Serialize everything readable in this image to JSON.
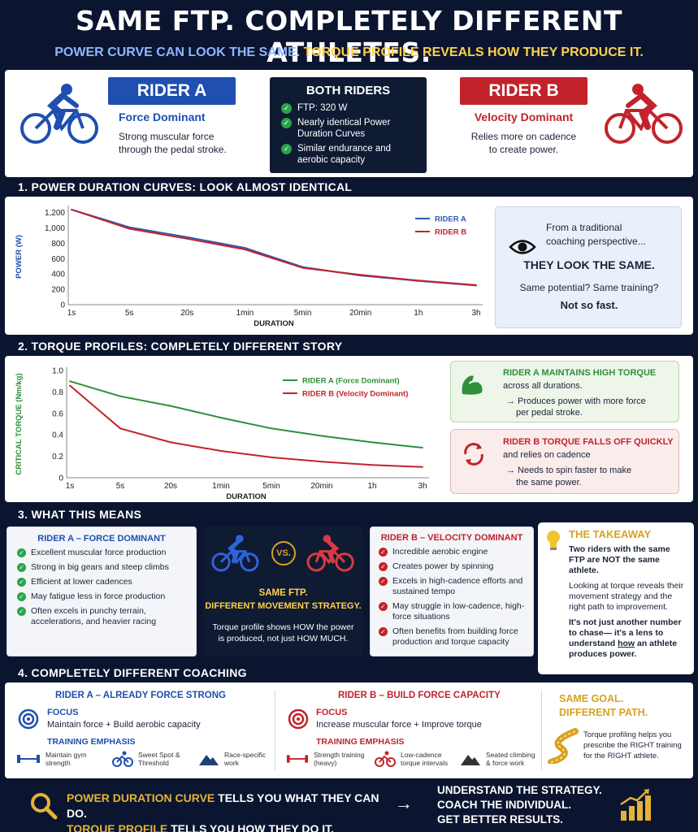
{
  "header": {
    "title": "SAME FTP. COMPLETELY DIFFERENT ATHLETES.",
    "subtitle_blue": "POWER CURVE CAN LOOK THE SAME.",
    "subtitle_yellow": "TORQUE PROFILE REVEALS HOW THEY PRODUCE IT."
  },
  "intro": {
    "rider_a": {
      "label": "RIDER A",
      "type": "Force Dominant",
      "desc1": "Strong muscular force",
      "desc2": "through the pedal stroke."
    },
    "both": {
      "title": "BOTH RIDERS",
      "items": [
        "FTP: 320 W",
        "Nearly identical Power Duration Curves",
        "Similar endurance and aerobic capacity"
      ]
    },
    "rider_b": {
      "label": "RIDER B",
      "type": "Velocity Dominant",
      "desc1": "Relies more on cadence",
      "desc2": "to create power."
    }
  },
  "section1": {
    "title": "1. POWER DURATION CURVES: LOOK ALMOST IDENTICAL",
    "callout": {
      "line1": "From a traditional",
      "line2": "coaching perspective...",
      "headline": "THEY LOOK THE SAME.",
      "question": "Same potential? Same training?",
      "answer": "Not so fast."
    }
  },
  "section2": {
    "title": "2. TORQUE PROFILES: COMPLETELY DIFFERENT STORY",
    "card_a": {
      "title": "RIDER A MAINTAINS HIGH TORQUE",
      "line1": "across all durations.",
      "line2": "→ Produces power with more force",
      "line3": "per pedal stroke."
    },
    "card_b": {
      "title": "RIDER B TORQUE FALLS OFF QUICKLY",
      "line1": "and relies on cadence",
      "line2": "→ Needs to spin faster to make",
      "line3": "the same power."
    }
  },
  "section3": {
    "title": "3. WHAT THIS MEANS",
    "rider_a": {
      "title": "RIDER A – FORCE DOMINANT",
      "items": [
        "Excellent muscular force production",
        "Strong in big gears and steep climbs",
        "Efficient at lower cadences",
        "May fatigue less in force production",
        "Often excels in punchy terrain, accelerations, and heavier racing"
      ]
    },
    "middle": {
      "vs": "VS.",
      "line1": "SAME FTP.",
      "line2": "DIFFERENT MOVEMENT STRATEGY.",
      "desc": "Torque profile shows HOW the power is produced, not just HOW MUCH."
    },
    "rider_b": {
      "title": "RIDER B – VELOCITY DOMINANT",
      "items": [
        "Incredible aerobic engine",
        "Creates power by spinning",
        "Excels in high-cadence efforts and sustained tempo",
        "May struggle in low-cadence, high-force situations",
        "Often benefits from building force production and torque capacity"
      ]
    },
    "takeaway": {
      "title": "THE TAKEAWAY",
      "p1": "Two riders with the same FTP are NOT the same athlete.",
      "p2": "Looking at torque reveals their movement strategy and the right path to improvement.",
      "p3a": "It's not just another number to chase—",
      "p3b": "it's a lens to understand",
      "p3c": "how",
      "p3d": "an athlete produces power."
    }
  },
  "section4": {
    "title": "4. COMPLETELY DIFFERENT COACHING",
    "rider_a": {
      "title": "RIDER A – ALREADY FORCE STRONG",
      "focus_label": "FOCUS",
      "focus": "Maintain force + Build aerobic capacity",
      "emph_label": "TRAINING EMPHASIS",
      "emph": [
        "Maintain gym strength",
        "Sweet Spot & Threshold",
        "Race-specific work"
      ]
    },
    "rider_b": {
      "title": "RIDER B – BUILD FORCE CAPACITY",
      "focus_label": "FOCUS",
      "focus": "Increase muscular force + Improve torque",
      "emph_label": "TRAINING EMPHASIS",
      "emph": [
        "Strength training (heavy)",
        "Low-cadence torque intervals",
        "Seated climbing & force work"
      ]
    },
    "goal": {
      "line1": "SAME GOAL.",
      "line2": "DIFFERENT PATH.",
      "desc": "Torque profiling helps you prescribe the RIGHT training for the RIGHT athlete."
    }
  },
  "footer": {
    "pdc": "POWER DURATION CURVE",
    "pdc_rest": "TELLS YOU WHAT THEY CAN DO.",
    "tp": "TORQUE PROFILE",
    "tp_mid": "TELLS YOU",
    "tp_how": "HOW",
    "tp_rest": "THEY DO IT.",
    "arrow": "→",
    "r1": "UNDERSTAND THE STRATEGY.",
    "r2": "COACH THE INDIVIDUAL.",
    "r3": "GET BETTER RESULTS."
  },
  "chart_data": [
    {
      "type": "line",
      "x": [
        "1s",
        "5s",
        "20s",
        "1min",
        "5min",
        "20min",
        "1h",
        "3h"
      ],
      "xlabel": "DURATION",
      "ylabel": "POWER (W)",
      "ylim": [
        0,
        1250
      ],
      "yticks": [
        "0",
        "200",
        "400",
        "600",
        "800",
        "1,000",
        "1,200"
      ],
      "legend": "top-right",
      "series": [
        {
          "name": "RIDER A",
          "color": "#2f58b8",
          "values": [
            1240,
            1010,
            880,
            740,
            490,
            380,
            310,
            250
          ]
        },
        {
          "name": "RIDER B",
          "color": "#c2232b",
          "values": [
            1240,
            990,
            860,
            720,
            480,
            390,
            315,
            255
          ]
        }
      ]
    },
    {
      "type": "line",
      "x": [
        "1s",
        "5s",
        "20s",
        "1min",
        "5min",
        "20min",
        "1h",
        "3h"
      ],
      "xlabel": "DURATION",
      "ylabel": "CRITICAL TORQUE (Nm/kg)",
      "ylim": [
        0,
        1.0
      ],
      "yticks": [
        "0",
        "0.2",
        "0.4",
        "0.6",
        "0.8",
        "1.0"
      ],
      "legend": "top-center",
      "series": [
        {
          "name": "RIDER A (Force Dominant)",
          "color": "#2e8f3a",
          "values": [
            0.9,
            0.76,
            0.67,
            0.56,
            0.46,
            0.39,
            0.33,
            0.28
          ]
        },
        {
          "name": "RIDER B (Velocity Dominant)",
          "color": "#c2232b",
          "values": [
            0.86,
            0.46,
            0.33,
            0.25,
            0.19,
            0.15,
            0.12,
            0.1
          ]
        }
      ]
    }
  ],
  "colors": {
    "navy": "#0b1530",
    "blue": "#1f4fb0",
    "red": "#c2232b",
    "green": "#2e8f3a",
    "gold": "#d9a21e"
  }
}
